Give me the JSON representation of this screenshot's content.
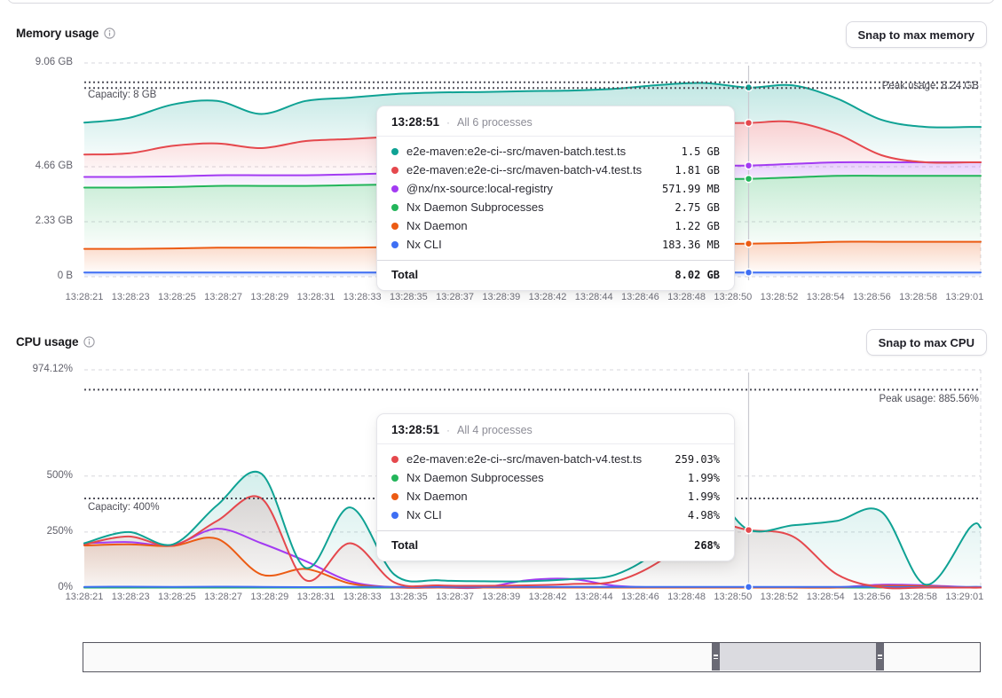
{
  "memory_section": {
    "title": "Memory usage",
    "snap_button_label": "Snap to max memory",
    "capacity_label": "Capacity: 8 GB",
    "peak_label": "Peak usage: 8.24 GB",
    "tooltip": {
      "time": "13:28:51",
      "bullet": "·",
      "subtitle": "All 6 processes",
      "rows": [
        {
          "name": "e2e-maven:e2e-ci--src/maven-batch.test.ts",
          "value": "1.5 GB",
          "color": "#0fa294"
        },
        {
          "name": "e2e-maven:e2e-ci--src/maven-batch-v4.test.ts",
          "value": "1.81 GB",
          "color": "#e5484d"
        },
        {
          "name": "@nx/nx-source:local-registry",
          "value": "571.99 MB",
          "color": "#a33bf2"
        },
        {
          "name": "Nx Daemon Subprocesses",
          "value": "2.75 GB",
          "color": "#23b55a"
        },
        {
          "name": "Nx Daemon",
          "value": "1.22 GB",
          "color": "#ec5b13"
        },
        {
          "name": "Nx CLI",
          "value": "183.36 MB",
          "color": "#3e6ff4"
        }
      ],
      "total_label": "Total",
      "total_value": "8.02 GB"
    }
  },
  "cpu_section": {
    "title": "CPU usage",
    "snap_button_label": "Snap to max CPU",
    "capacity_label": "Capacity: 400%",
    "peak_label": "Peak usage: 885.56%",
    "tooltip": {
      "time": "13:28:51",
      "bullet": "·",
      "subtitle": "All 4 processes",
      "rows": [
        {
          "name": "e2e-maven:e2e-ci--src/maven-batch-v4.test.ts",
          "value": "259.03%",
          "color": "#e5484d"
        },
        {
          "name": "Nx Daemon Subprocesses",
          "value": "1.99%",
          "color": "#23b55a"
        },
        {
          "name": "Nx Daemon",
          "value": "1.99%",
          "color": "#ec5b13"
        },
        {
          "name": "Nx CLI",
          "value": "4.98%",
          "color": "#3e6ff4"
        }
      ],
      "total_label": "Total",
      "total_value": "268%"
    }
  },
  "chart_data": [
    {
      "id": "memory",
      "type": "area",
      "stacked": true,
      "title": "Memory usage",
      "unit": "GB",
      "x_seconds": [
        21,
        23,
        25,
        27,
        29,
        31,
        33,
        35,
        37,
        39,
        41,
        43,
        45,
        47,
        49,
        51,
        53,
        55,
        57,
        59,
        61
      ],
      "x_tick_labels": [
        "13:28:21",
        "13:28:23",
        "13:28:25",
        "13:28:27",
        "13:28:29",
        "13:28:31",
        "13:28:33",
        "13:28:35",
        "13:28:37",
        "13:28:39",
        "13:28:42",
        "13:28:44",
        "13:28:46",
        "13:28:48",
        "13:28:50",
        "13:28:52",
        "13:28:54",
        "13:28:56",
        "13:28:58",
        "13:29:01"
      ],
      "ylim": [
        0,
        9.06
      ],
      "y_ticks": [
        {
          "value": 9.06,
          "label": "9.06 GB"
        },
        {
          "value": 4.66,
          "label": "4.66 GB"
        },
        {
          "value": 2.33,
          "label": "2.33 GB"
        },
        {
          "value": 0,
          "label": "0 B"
        }
      ],
      "capacity": {
        "value": 8,
        "label": "Capacity: 8 GB"
      },
      "peak": {
        "value": 8.24,
        "label": "Peak usage: 8.24 GB"
      },
      "cursor": {
        "time": "13:28:51",
        "x_second": 51
      },
      "grid": true,
      "legend": "tooltip",
      "series": [
        {
          "name": "Nx CLI",
          "color": "#3e6ff4",
          "cursor_dot": true,
          "values": [
            0.18,
            0.18,
            0.18,
            0.18,
            0.18,
            0.18,
            0.18,
            0.18,
            0.18,
            0.18,
            0.18,
            0.18,
            0.18,
            0.18,
            0.18,
            0.18,
            0.18,
            0.18,
            0.18,
            0.18,
            0.18
          ]
        },
        {
          "name": "Nx Daemon",
          "color": "#ec5b13",
          "cursor_dot": true,
          "values": [
            1.0,
            1.0,
            1.02,
            1.05,
            1.05,
            1.05,
            1.05,
            1.08,
            1.1,
            1.1,
            1.12,
            1.15,
            1.15,
            1.2,
            1.22,
            1.22,
            1.25,
            1.3,
            1.3,
            1.3,
            1.3
          ]
        },
        {
          "name": "Nx Daemon Subprocesses",
          "color": "#23b55a",
          "cursor_dot": true,
          "values": [
            2.6,
            2.6,
            2.6,
            2.62,
            2.62,
            2.62,
            2.65,
            2.65,
            2.68,
            2.7,
            2.7,
            2.72,
            2.72,
            2.75,
            2.75,
            2.75,
            2.78,
            2.8,
            2.8,
            2.8,
            2.8
          ]
        },
        {
          "name": "@nx/nx-source:local-registry",
          "color": "#a33bf2",
          "cursor_dot": true,
          "values": [
            0.45,
            0.45,
            0.45,
            0.45,
            0.45,
            0.45,
            0.46,
            0.48,
            0.5,
            0.5,
            0.52,
            0.54,
            0.55,
            0.56,
            0.56,
            0.56,
            0.57,
            0.57,
            0.57,
            0.57,
            0.57
          ]
        },
        {
          "name": "e2e-maven:e2e-ci--src/maven-batch-v4.test.ts",
          "color": "#e5484d",
          "cursor_dot": true,
          "values": [
            0.95,
            1.0,
            1.3,
            1.35,
            1.15,
            1.45,
            1.5,
            1.55,
            1.6,
            1.65,
            1.7,
            1.7,
            1.75,
            1.78,
            1.8,
            1.81,
            1.78,
            1.2,
            0.3,
            0.0,
            0.0
          ]
        },
        {
          "name": "e2e-maven:e2e-ci--src/maven-batch.test.ts",
          "color": "#0fa294",
          "cursor_dot": true,
          "values": [
            1.35,
            1.5,
            1.75,
            1.8,
            1.45,
            1.7,
            1.75,
            1.8,
            1.75,
            1.7,
            1.65,
            1.6,
            1.62,
            1.66,
            1.7,
            1.5,
            1.55,
            1.5,
            1.5,
            1.5,
            1.5
          ]
        }
      ]
    },
    {
      "id": "cpu",
      "type": "line",
      "stacked": false,
      "title": "CPU usage",
      "unit": "%",
      "x_seconds": [
        21,
        23,
        25,
        27,
        29,
        31,
        33,
        35,
        37,
        39,
        41,
        43,
        45,
        47,
        49,
        51,
        53,
        55,
        57,
        59,
        61
      ],
      "x_tick_labels": [
        "13:28:21",
        "13:28:23",
        "13:28:25",
        "13:28:27",
        "13:28:29",
        "13:28:31",
        "13:28:33",
        "13:28:35",
        "13:28:37",
        "13:28:39",
        "13:28:42",
        "13:28:44",
        "13:28:46",
        "13:28:48",
        "13:28:50",
        "13:28:52",
        "13:28:54",
        "13:28:56",
        "13:28:58",
        "13:29:01"
      ],
      "ylim": [
        0,
        974.12
      ],
      "y_ticks": [
        {
          "value": 974.12,
          "label": "974.12%"
        },
        {
          "value": 500,
          "label": "500%"
        },
        {
          "value": 250,
          "label": "250%"
        },
        {
          "value": 0,
          "label": "0%"
        }
      ],
      "capacity": {
        "value": 400,
        "label": "Capacity: 400%"
      },
      "peak": {
        "value": 885.56,
        "label": "Peak usage: 885.56%"
      },
      "cursor": {
        "time": "13:28:51",
        "x_second": 51
      },
      "grid": true,
      "legend": "tooltip",
      "series": [
        {
          "name": "Nx Daemon Subprocesses",
          "color": "#23b55a",
          "cursor_dot": true,
          "fill": false,
          "values": [
            2,
            2,
            2,
            2,
            2,
            2,
            2,
            2,
            2,
            2,
            2,
            2,
            2,
            2,
            2,
            2,
            2,
            2,
            2,
            2,
            2
          ]
        },
        {
          "name": "@nx/nx-source:local-registry",
          "color": "#a33bf2",
          "cursor_dot": false,
          "fill": false,
          "values": [
            200,
            205,
            192,
            265,
            200,
            120,
            30,
            3,
            2,
            2,
            35,
            40,
            10,
            3,
            3,
            3,
            3,
            3,
            15,
            12,
            3
          ]
        },
        {
          "name": "Nx Daemon",
          "color": "#ec5b13",
          "cursor_dot": true,
          "fill": true,
          "values": [
            190,
            195,
            188,
            220,
            60,
            85,
            20,
            3,
            2,
            2,
            2,
            2,
            2,
            2,
            2,
            2,
            2,
            2,
            10,
            8,
            2
          ]
        },
        {
          "name": "Nx CLI",
          "color": "#3e6ff4",
          "cursor_dot": true,
          "fill": false,
          "values": [
            5,
            6,
            5,
            6,
            5,
            4,
            5,
            5,
            5,
            5,
            5,
            5,
            5,
            5,
            5,
            5,
            5,
            5,
            5,
            4,
            5
          ]
        },
        {
          "name": "e2e-maven:e2e-ci--src/maven-batch-v4.test.ts",
          "color": "#e5484d",
          "cursor_dot": true,
          "fill": true,
          "values": [
            195,
            230,
            190,
            300,
            400,
            35,
            200,
            25,
            12,
            10,
            12,
            18,
            30,
            120,
            285,
            259,
            230,
            60,
            3,
            2,
            2
          ]
        },
        {
          "name": "e2e-maven:e2e-ci--src/maven-batch.test.ts",
          "color": "#0fa294",
          "cursor_dot": false,
          "fill": true,
          "values": [
            200,
            250,
            195,
            370,
            510,
            90,
            360,
            60,
            35,
            30,
            30,
            40,
            60,
            180,
            430,
            260,
            280,
            300,
            340,
            15,
            270
          ]
        }
      ]
    }
  ]
}
